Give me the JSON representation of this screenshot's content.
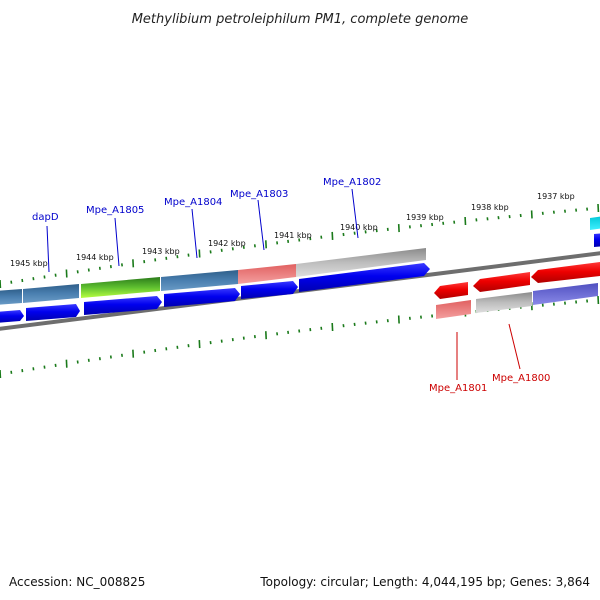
{
  "title": "Methylibium petroleiphilum PM1, complete genome",
  "footer": {
    "accession": "Accession: NC_008825",
    "topology": "Topology: circular; Length: 4,044,195 bp; Genes: 3,864"
  },
  "ticks": {
    "outer": [
      "1945 kbp",
      "1944 kbp",
      "1943 kbp",
      "1942 kbp",
      "1941 kbp",
      "1940 kbp",
      "1939 kbp",
      "1938 kbp",
      "1937 kbp"
    ]
  },
  "genes": [
    {
      "name": "dapD",
      "strand": "+",
      "color": "#0000cc"
    },
    {
      "name": "Mpe_A1805",
      "strand": "+",
      "color": "#0000cc"
    },
    {
      "name": "Mpe_A1804",
      "strand": "+",
      "color": "#0000cc"
    },
    {
      "name": "Mpe_A1803",
      "strand": "+",
      "color": "#0000cc"
    },
    {
      "name": "Mpe_A1802",
      "strand": "+",
      "color": "#0000cc"
    },
    {
      "name": "Mpe_A1801",
      "strand": "-",
      "color": "#cc0000"
    },
    {
      "name": "Mpe_A1800",
      "strand": "-",
      "color": "#cc0000"
    }
  ]
}
